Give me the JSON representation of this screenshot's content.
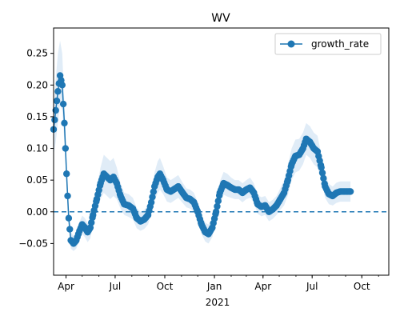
{
  "chart_data": {
    "type": "line",
    "title": "WV",
    "xlabel": "",
    "ylabel": "",
    "x_range": [
      "2020-03-09",
      "2021-11-20"
    ],
    "y_range": [
      -0.1,
      0.29
    ],
    "y_ticks": [
      -0.05,
      0.0,
      0.05,
      0.1,
      0.15,
      0.2,
      0.25
    ],
    "y_tick_labels": [
      "−0.05",
      "0.00",
      "0.05",
      "0.10",
      "0.15",
      "0.20",
      "0.25"
    ],
    "x_ticks": [
      {
        "date": "2020-04-01",
        "label": "Apr"
      },
      {
        "date": "2020-07-01",
        "label": "Jul"
      },
      {
        "date": "2020-10-01",
        "label": "Oct"
      },
      {
        "date": "2021-01-01",
        "label": "Jan"
      },
      {
        "date": "2021-04-01",
        "label": "Apr"
      },
      {
        "date": "2021-07-01",
        "label": "Jul"
      },
      {
        "date": "2021-10-01",
        "label": "Oct"
      }
    ],
    "x_year_label": "2021",
    "legend": {
      "entries": [
        "growth_rate"
      ],
      "location": "upper right"
    },
    "reference_line": {
      "y": 0,
      "style": "dashed"
    },
    "series": [
      {
        "name": "growth_rate",
        "color": "#1f77b4",
        "marker": "circle",
        "band_color": "#d6e6f4",
        "points": [
          {
            "date": "2020-03-09",
            "y": 0.13,
            "lo": 0.09,
            "hi": 0.16
          },
          {
            "date": "2020-03-13",
            "y": 0.16,
            "lo": 0.11,
            "hi": 0.21
          },
          {
            "date": "2020-03-17",
            "y": 0.19,
            "lo": 0.14,
            "hi": 0.25
          },
          {
            "date": "2020-03-21",
            "y": 0.215,
            "lo": 0.17,
            "hi": 0.27
          },
          {
            "date": "2020-03-25",
            "y": 0.2,
            "lo": 0.16,
            "hi": 0.25
          },
          {
            "date": "2020-03-29",
            "y": 0.14,
            "lo": 0.11,
            "hi": 0.17
          },
          {
            "date": "2020-04-02",
            "y": 0.06,
            "lo": 0.04,
            "hi": 0.08
          },
          {
            "date": "2020-04-06",
            "y": -0.01,
            "lo": -0.025,
            "hi": 0.005
          },
          {
            "date": "2020-04-10",
            "y": -0.045,
            "lo": -0.058,
            "hi": -0.032
          },
          {
            "date": "2020-04-15",
            "y": -0.05,
            "lo": -0.062,
            "hi": -0.038
          },
          {
            "date": "2020-04-20",
            "y": -0.045,
            "lo": -0.058,
            "hi": -0.032
          },
          {
            "date": "2020-04-26",
            "y": -0.03,
            "lo": -0.045,
            "hi": -0.016
          },
          {
            "date": "2020-05-01",
            "y": -0.02,
            "lo": -0.035,
            "hi": -0.006
          },
          {
            "date": "2020-05-06",
            "y": -0.025,
            "lo": -0.04,
            "hi": -0.01
          },
          {
            "date": "2020-05-11",
            "y": -0.032,
            "lo": -0.048,
            "hi": -0.018
          },
          {
            "date": "2020-05-16",
            "y": -0.025,
            "lo": -0.042,
            "hi": -0.01
          },
          {
            "date": "2020-05-21",
            "y": -0.005,
            "lo": -0.022,
            "hi": 0.012
          },
          {
            "date": "2020-05-28",
            "y": 0.02,
            "lo": 0.0,
            "hi": 0.04
          },
          {
            "date": "2020-06-04",
            "y": 0.045,
            "lo": 0.02,
            "hi": 0.07
          },
          {
            "date": "2020-06-10",
            "y": 0.06,
            "lo": 0.03,
            "hi": 0.09
          },
          {
            "date": "2020-06-16",
            "y": 0.055,
            "lo": 0.025,
            "hi": 0.085
          },
          {
            "date": "2020-06-22",
            "y": 0.05,
            "lo": 0.02,
            "hi": 0.08
          },
          {
            "date": "2020-06-28",
            "y": 0.055,
            "lo": 0.025,
            "hi": 0.085
          },
          {
            "date": "2020-07-04",
            "y": 0.045,
            "lo": 0.02,
            "hi": 0.07
          },
          {
            "date": "2020-07-11",
            "y": 0.025,
            "lo": 0.005,
            "hi": 0.045
          },
          {
            "date": "2020-07-18",
            "y": 0.012,
            "lo": -0.005,
            "hi": 0.03
          },
          {
            "date": "2020-07-26",
            "y": 0.01,
            "lo": -0.008,
            "hi": 0.028
          },
          {
            "date": "2020-08-03",
            "y": 0.005,
            "lo": -0.012,
            "hi": 0.022
          },
          {
            "date": "2020-08-10",
            "y": -0.01,
            "lo": -0.026,
            "hi": 0.006
          },
          {
            "date": "2020-08-17",
            "y": -0.015,
            "lo": -0.03,
            "hi": 0.0
          },
          {
            "date": "2020-08-24",
            "y": -0.012,
            "lo": -0.027,
            "hi": 0.003
          },
          {
            "date": "2020-08-31",
            "y": -0.005,
            "lo": -0.02,
            "hi": 0.01
          },
          {
            "date": "2020-09-06",
            "y": 0.015,
            "lo": -0.002,
            "hi": 0.032
          },
          {
            "date": "2020-09-12",
            "y": 0.04,
            "lo": 0.018,
            "hi": 0.062
          },
          {
            "date": "2020-09-18",
            "y": 0.055,
            "lo": 0.03,
            "hi": 0.08
          },
          {
            "date": "2020-09-22",
            "y": 0.06,
            "lo": 0.035,
            "hi": 0.085
          },
          {
            "date": "2020-09-28",
            "y": 0.05,
            "lo": 0.028,
            "hi": 0.072
          },
          {
            "date": "2020-10-05",
            "y": 0.035,
            "lo": 0.016,
            "hi": 0.054
          },
          {
            "date": "2020-10-12",
            "y": 0.032,
            "lo": 0.014,
            "hi": 0.05
          },
          {
            "date": "2020-10-19",
            "y": 0.036,
            "lo": 0.018,
            "hi": 0.054
          },
          {
            "date": "2020-10-26",
            "y": 0.04,
            "lo": 0.022,
            "hi": 0.058
          },
          {
            "date": "2020-11-03",
            "y": 0.03,
            "lo": 0.014,
            "hi": 0.046
          },
          {
            "date": "2020-11-10",
            "y": 0.022,
            "lo": 0.007,
            "hi": 0.037
          },
          {
            "date": "2020-11-17",
            "y": 0.02,
            "lo": 0.005,
            "hi": 0.035
          },
          {
            "date": "2020-11-24",
            "y": 0.015,
            "lo": 0.0,
            "hi": 0.03
          },
          {
            "date": "2020-12-01",
            "y": 0.0,
            "lo": -0.015,
            "hi": 0.015
          },
          {
            "date": "2020-12-08",
            "y": -0.02,
            "lo": -0.035,
            "hi": -0.005
          },
          {
            "date": "2020-12-15",
            "y": -0.032,
            "lo": -0.047,
            "hi": -0.017
          },
          {
            "date": "2020-12-21",
            "y": -0.035,
            "lo": -0.05,
            "hi": -0.02
          },
          {
            "date": "2020-12-28",
            "y": -0.025,
            "lo": -0.04,
            "hi": -0.01
          },
          {
            "date": "2021-01-04",
            "y": 0.0,
            "lo": -0.016,
            "hi": 0.016
          },
          {
            "date": "2021-01-11",
            "y": 0.03,
            "lo": 0.012,
            "hi": 0.048
          },
          {
            "date": "2021-01-18",
            "y": 0.045,
            "lo": 0.027,
            "hi": 0.063
          },
          {
            "date": "2021-01-25",
            "y": 0.042,
            "lo": 0.024,
            "hi": 0.06
          },
          {
            "date": "2021-02-01",
            "y": 0.038,
            "lo": 0.022,
            "hi": 0.054
          },
          {
            "date": "2021-02-08",
            "y": 0.035,
            "lo": 0.02,
            "hi": 0.05
          },
          {
            "date": "2021-02-15",
            "y": 0.035,
            "lo": 0.02,
            "hi": 0.05
          },
          {
            "date": "2021-02-22",
            "y": 0.03,
            "lo": 0.015,
            "hi": 0.045
          },
          {
            "date": "2021-03-01",
            "y": 0.035,
            "lo": 0.02,
            "hi": 0.05
          },
          {
            "date": "2021-03-08",
            "y": 0.038,
            "lo": 0.022,
            "hi": 0.054
          },
          {
            "date": "2021-03-15",
            "y": 0.03,
            "lo": 0.015,
            "hi": 0.045
          },
          {
            "date": "2021-03-22",
            "y": 0.012,
            "lo": -0.003,
            "hi": 0.027
          },
          {
            "date": "2021-03-29",
            "y": 0.008,
            "lo": -0.007,
            "hi": 0.023
          },
          {
            "date": "2021-04-05",
            "y": 0.01,
            "lo": -0.005,
            "hi": 0.025
          },
          {
            "date": "2021-04-12",
            "y": 0.0,
            "lo": -0.015,
            "hi": 0.015
          },
          {
            "date": "2021-04-19",
            "y": 0.004,
            "lo": -0.011,
            "hi": 0.019
          },
          {
            "date": "2021-04-26",
            "y": 0.01,
            "lo": -0.005,
            "hi": 0.025
          },
          {
            "date": "2021-05-03",
            "y": 0.02,
            "lo": 0.003,
            "hi": 0.037
          },
          {
            "date": "2021-05-10",
            "y": 0.03,
            "lo": 0.01,
            "hi": 0.05
          },
          {
            "date": "2021-05-17",
            "y": 0.05,
            "lo": 0.026,
            "hi": 0.074
          },
          {
            "date": "2021-05-24",
            "y": 0.075,
            "lo": 0.05,
            "hi": 0.1
          },
          {
            "date": "2021-05-31",
            "y": 0.088,
            "lo": 0.062,
            "hi": 0.114
          },
          {
            "date": "2021-06-07",
            "y": 0.09,
            "lo": 0.065,
            "hi": 0.115
          },
          {
            "date": "2021-06-14",
            "y": 0.1,
            "lo": 0.075,
            "hi": 0.125
          },
          {
            "date": "2021-06-20",
            "y": 0.115,
            "lo": 0.09,
            "hi": 0.14
          },
          {
            "date": "2021-06-27",
            "y": 0.11,
            "lo": 0.085,
            "hi": 0.135
          },
          {
            "date": "2021-07-04",
            "y": 0.1,
            "lo": 0.075,
            "hi": 0.125
          },
          {
            "date": "2021-07-11",
            "y": 0.095,
            "lo": 0.07,
            "hi": 0.12
          },
          {
            "date": "2021-07-18",
            "y": 0.07,
            "lo": 0.05,
            "hi": 0.09
          },
          {
            "date": "2021-07-25",
            "y": 0.04,
            "lo": 0.022,
            "hi": 0.058
          },
          {
            "date": "2021-08-01",
            "y": 0.028,
            "lo": 0.012,
            "hi": 0.044
          },
          {
            "date": "2021-08-08",
            "y": 0.025,
            "lo": 0.01,
            "hi": 0.04
          },
          {
            "date": "2021-08-15",
            "y": 0.03,
            "lo": 0.014,
            "hi": 0.046
          },
          {
            "date": "2021-08-22",
            "y": 0.032,
            "lo": 0.016,
            "hi": 0.048
          },
          {
            "date": "2021-09-01",
            "y": 0.032,
            "lo": 0.016,
            "hi": 0.048
          },
          {
            "date": "2021-09-10",
            "y": 0.032,
            "lo": 0.016,
            "hi": 0.048
          }
        ]
      }
    ]
  }
}
